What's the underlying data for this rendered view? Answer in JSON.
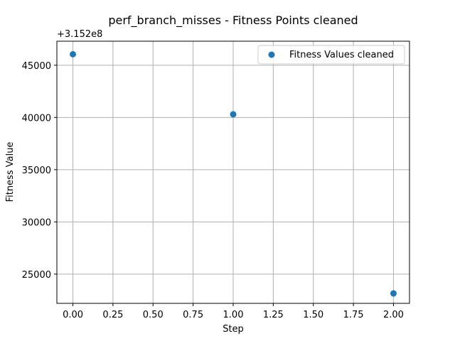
{
  "chart_data": {
    "type": "scatter",
    "title": "perf_branch_misses - Fitness Points cleaned",
    "xlabel": "Step",
    "ylabel": "Fitness Value",
    "y_offset_label": "+3.152e8",
    "xlim": [
      -0.1,
      2.1
    ],
    "ylim": [
      22200,
      47300
    ],
    "xticks": [
      0.0,
      0.25,
      0.5,
      0.75,
      1.0,
      1.25,
      1.5,
      1.75,
      2.0
    ],
    "xtick_labels": [
      "0.00",
      "0.25",
      "0.50",
      "0.75",
      "1.00",
      "1.25",
      "1.50",
      "1.75",
      "2.00"
    ],
    "yticks": [
      25000,
      30000,
      35000,
      40000,
      45000
    ],
    "ytick_labels": [
      "25000",
      "30000",
      "35000",
      "40000",
      "45000"
    ],
    "grid": true,
    "legend_position": "top-right",
    "series": [
      {
        "name": "Fitness Values cleaned",
        "color": "#1f77b4",
        "x": [
          0,
          1,
          2
        ],
        "y": [
          46050,
          40300,
          23150
        ]
      }
    ]
  }
}
